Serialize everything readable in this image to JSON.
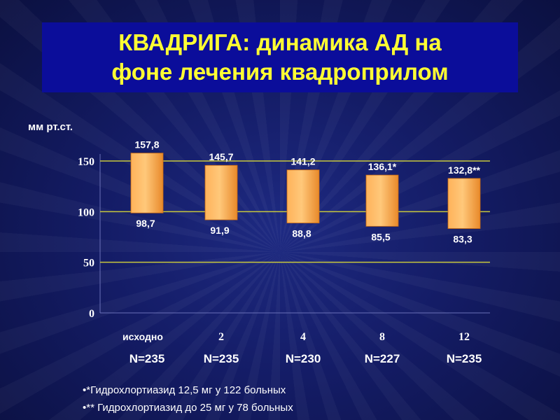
{
  "title": "КВАДРИГА: динамика АД на\nфоне лечения квадроприлом",
  "colors": {
    "title_bg": "#0b0d9a",
    "title_text": "#ffff33",
    "bar_fill": "#f7a13a",
    "gridline": "#c8c83c",
    "label_text": "#ffffff"
  },
  "chart_data": {
    "type": "bar",
    "ylabel": "мм рт.ст.",
    "ylim": [
      0,
      150
    ],
    "y_ticks": [
      "0",
      "50",
      "100",
      "150"
    ],
    "categories": [
      "исходно",
      "2",
      "4",
      "8",
      "12"
    ],
    "sample_sizes": [
      "N=235",
      "N=235",
      "N=230",
      "N=227",
      "N=235"
    ],
    "ranges": [
      {
        "low": 98.7,
        "high": 157.8
      },
      {
        "low": 91.9,
        "high": 145.7
      },
      {
        "low": 88.8,
        "high": 141.2
      },
      {
        "low": 85.5,
        "high": 136.1
      },
      {
        "low": 83.3,
        "high": 132.8
      }
    ],
    "high_labels": [
      "157,8",
      "145,7",
      "141,2",
      "136,1*",
      "132,8**"
    ],
    "low_labels": [
      "98,7",
      "91,9",
      "88,8",
      "85,5",
      "83,3"
    ],
    "grid": true,
    "legend": "none"
  },
  "footnotes": [
    "•*Гидрохлортиазид 12,5 мг у 122 больных",
    "•** Гидрохлортиазид до 25 мг  у 78 больных"
  ]
}
